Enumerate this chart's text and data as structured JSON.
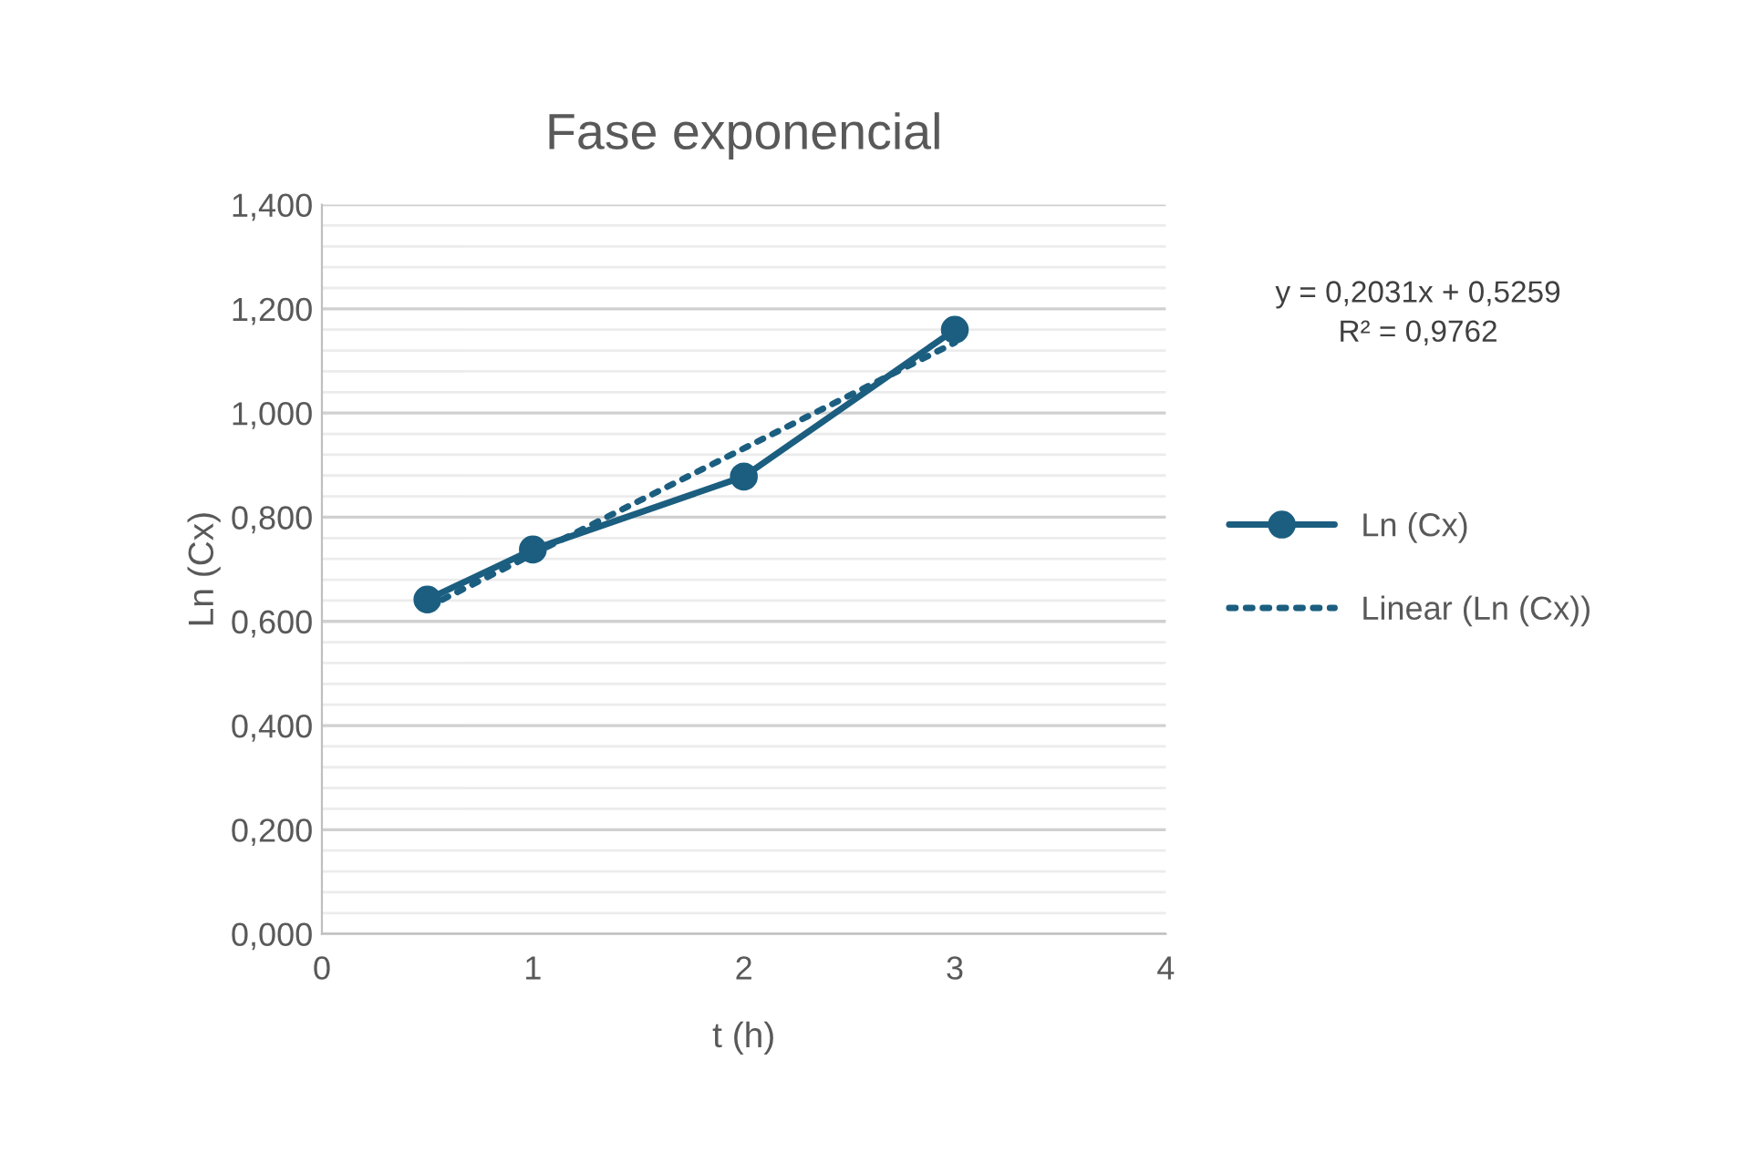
{
  "chart_data": {
    "type": "line",
    "title": "Fase exponencial",
    "xlabel": "t (h)",
    "ylabel": "Ln (Cx)",
    "series": [
      {
        "name": "Ln (Cx)",
        "color": "#1b5e80",
        "x": [
          0.5,
          1,
          2,
          3
        ],
        "values": [
          0.642,
          0.738,
          0.878,
          1.16
        ],
        "marker": "circle",
        "line_style": "solid"
      },
      {
        "name": "Linear (Ln (Cx))",
        "color": "#1b5e80",
        "x": [
          0.5,
          3
        ],
        "values": [
          0.6275,
          1.1352
        ],
        "marker": "none",
        "line_style": "dotted"
      }
    ],
    "annotations": [
      "y = 0,2031x + 0,5259\nR² = 0,9762"
    ],
    "xlim": [
      0,
      4
    ],
    "xticks": [
      0,
      1,
      2,
      3,
      4
    ],
    "ylim": [
      0,
      1.4
    ],
    "yticks": [
      {
        "value": 0,
        "label": "0,000"
      },
      {
        "value": 0.2,
        "label": "0,200"
      },
      {
        "value": 0.4,
        "label": "0,400"
      },
      {
        "value": 0.6,
        "label": "0,600"
      },
      {
        "value": 0.8,
        "label": "0,800"
      },
      {
        "value": 1.0,
        "label": "1,000"
      },
      {
        "value": 1.2,
        "label": "1,200"
      },
      {
        "value": 1.4,
        "label": "1,400"
      }
    ],
    "grid": "y",
    "legend": "right"
  }
}
